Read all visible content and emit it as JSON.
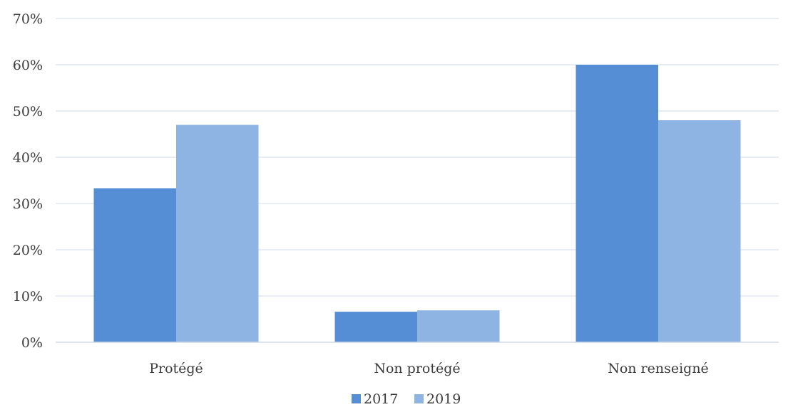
{
  "chart_data": {
    "type": "bar",
    "categories": [
      "Protégé",
      "Non protégé",
      "Non renseigné"
    ],
    "series": [
      {
        "name": "2017",
        "values": [
          33.3,
          6.6,
          60.0
        ],
        "color": "#558ed5"
      },
      {
        "name": "2019",
        "values": [
          47.0,
          6.9,
          48.0
        ],
        "color": "#8eb4e3"
      }
    ],
    "title": "",
    "xlabel": "",
    "ylabel": "",
    "ylim": [
      0,
      70
    ],
    "yticks": [
      "0%",
      "10%",
      "20%",
      "30%",
      "40%",
      "50%",
      "60%",
      "70%"
    ],
    "grid": true,
    "legend_position": "bottom"
  }
}
